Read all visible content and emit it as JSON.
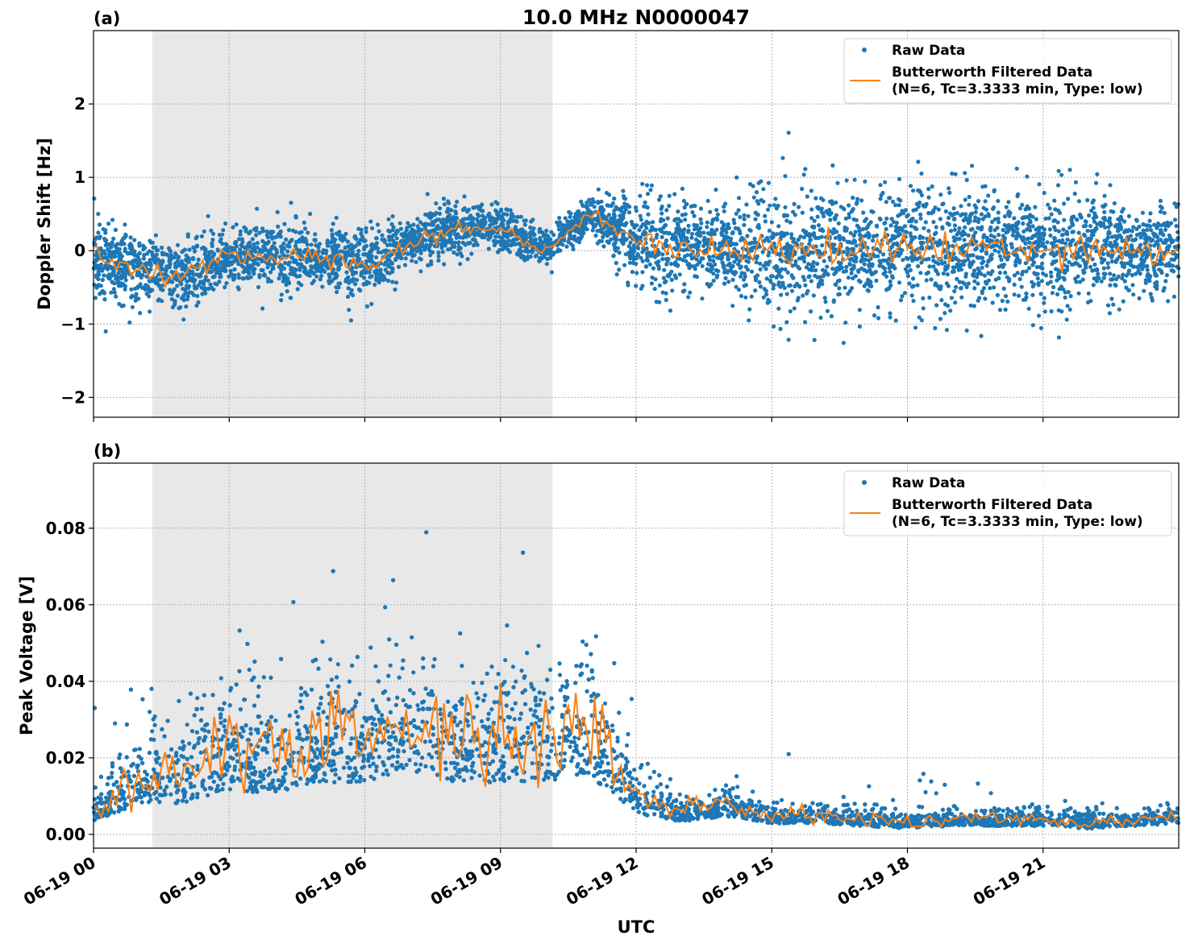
{
  "chart_data": [
    {
      "type": "scatter+line",
      "panel_label": "(a)",
      "title": "10.0 MHz N0000047",
      "xlabel": "",
      "ylabel": "Doppler Shift [Hz]",
      "xlim_hours": [
        0,
        24
      ],
      "ylim": [
        -2.27,
        3.0
      ],
      "yticks": [
        -2,
        -1,
        0,
        1,
        2
      ],
      "ytick_labels": [
        "−2",
        "−1",
        "0",
        "1",
        "2"
      ],
      "grid": true,
      "shaded_span_hours": [
        1.3,
        10.15
      ],
      "legend": {
        "placement": "upper-right",
        "entries": [
          "Raw Data",
          "Butterworth Filtered Data",
          "(N=6, Tc=3.3333 min, Type: low)"
        ]
      },
      "hours": [
        0,
        1,
        2,
        3,
        4,
        5,
        6,
        7,
        8,
        9,
        10,
        11,
        12,
        13,
        14,
        15,
        16,
        17,
        18,
        19,
        20,
        21,
        22,
        23,
        24
      ],
      "series": [
        {
          "name": "Butterworth Filtered Data",
          "values": [
            -0.1,
            -0.25,
            -0.35,
            -0.1,
            -0.05,
            -0.1,
            -0.2,
            0.1,
            0.3,
            0.3,
            0.0,
            0.5,
            0.15,
            0.05,
            0.0,
            0.0,
            0.05,
            0.0,
            0.05,
            0.0,
            0.05,
            0.05,
            0.05,
            0.0,
            0.0
          ]
        },
        {
          "name": "Raw Data",
          "spread": [
            0.5,
            0.35,
            0.4,
            0.35,
            0.4,
            0.35,
            0.4,
            0.3,
            0.3,
            0.25,
            0.2,
            0.2,
            0.5,
            0.55,
            0.4,
            0.7,
            0.7,
            0.6,
            0.75,
            0.75,
            0.6,
            0.7,
            0.6,
            0.5,
            0.5
          ]
        }
      ]
    },
    {
      "type": "scatter+line",
      "panel_label": "(b)",
      "xlabel": "UTC",
      "ylabel": "Peak Voltage [V]",
      "xlim_hours": [
        0,
        24
      ],
      "ylim": [
        -0.0036,
        0.097
      ],
      "yticks": [
        0,
        0.02,
        0.04,
        0.06,
        0.08
      ],
      "ytick_labels": [
        "0.00",
        "0.02",
        "0.04",
        "0.06",
        "0.08"
      ],
      "xtick_labels": [
        "06-19 00",
        "06-19 03",
        "06-19 06",
        "06-19 09",
        "06-19 12",
        "06-19 15",
        "06-19 18",
        "06-19 21"
      ],
      "grid": true,
      "shaded_span_hours": [
        1.3,
        10.15
      ],
      "legend": {
        "placement": "upper-right",
        "entries": [
          "Raw Data",
          "Butterworth Filtered Data",
          "(N=6, Tc=3.3333 min, Type: low)"
        ]
      },
      "hours": [
        0,
        1,
        2,
        3,
        4,
        5,
        6,
        7,
        8,
        9,
        10,
        11,
        12,
        13,
        14,
        15,
        16,
        17,
        18,
        19,
        20,
        21,
        22,
        23,
        24
      ],
      "series": [
        {
          "name": "Butterworth Filtered Data",
          "values": [
            0.006,
            0.015,
            0.016,
            0.022,
            0.02,
            0.025,
            0.025,
            0.03,
            0.025,
            0.025,
            0.025,
            0.028,
            0.01,
            0.006,
            0.008,
            0.005,
            0.005,
            0.004,
            0.003,
            0.004,
            0.004,
            0.004,
            0.003,
            0.004,
            0.005
          ]
        },
        {
          "name": "Raw Data",
          "spread": [
            0.003,
            0.008,
            0.01,
            0.012,
            0.012,
            0.013,
            0.013,
            0.014,
            0.013,
            0.013,
            0.012,
            0.015,
            0.005,
            0.003,
            0.003,
            0.002,
            0.002,
            0.002,
            0.002,
            0.002,
            0.002,
            0.002,
            0.002,
            0.002,
            0.002
          ]
        }
      ]
    }
  ],
  "colors": {
    "raw": "#1f77b4",
    "filtered": "#ff7f0e",
    "shade": "#e8e8e8"
  }
}
